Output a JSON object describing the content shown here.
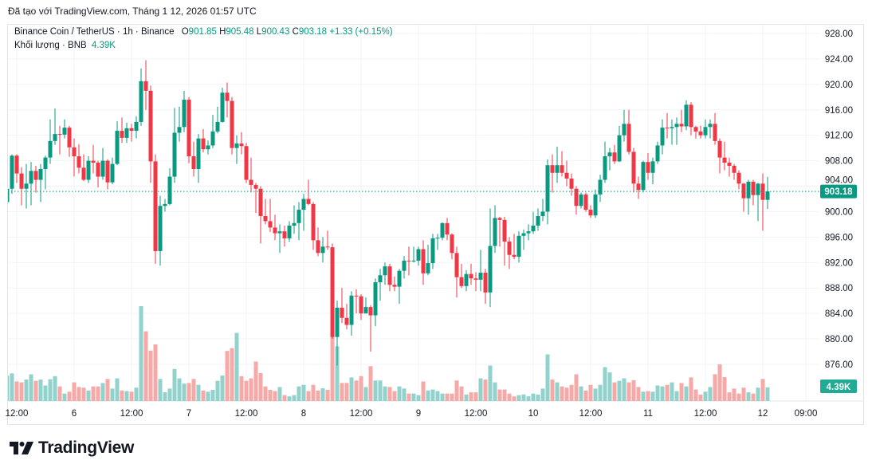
{
  "header": {
    "created_with": "Đã tạo với TradingView.com, Tháng 1 12, 2026 01:57 UTC"
  },
  "legend": {
    "symbol": "Binance Coin / TetherUS · 1h · Binance",
    "open_label": "O",
    "open": "901.85",
    "high_label": "H",
    "high": "905.48",
    "low_label": "L",
    "low": "900.43",
    "close_label": "C",
    "close": "903.18",
    "change": "+1.33 (+0.15%)",
    "volume_label": "Khối lượng · BNB",
    "volume": "4.39K"
  },
  "logo": {
    "text": "TradingView"
  },
  "colors": {
    "up": "#089981",
    "down": "#f23645",
    "up_volume": "#92d2cc",
    "down_volume": "#f7a9a7",
    "grid": "#f0f3fa",
    "last_price": "#089981"
  },
  "chart_data": {
    "type": "candlestick",
    "title": "Binance Coin / TetherUS · 1h · Binance",
    "interval": "1h",
    "ylim": [
      872,
      930
    ],
    "y_ticks": [
      "928.00",
      "924.00",
      "920.00",
      "916.00",
      "912.00",
      "908.00",
      "904.00",
      "900.00",
      "896.00",
      "892.00",
      "888.00",
      "884.00",
      "880.00",
      "876.00"
    ],
    "x_ticks": [
      "12:00",
      "6",
      "12:00",
      "7",
      "12:00",
      "8",
      "12:00",
      "9",
      "12:00",
      "10",
      "12:00",
      "11",
      "12:00",
      "12",
      "09:00"
    ],
    "grid": true,
    "last_price_label": "903.18",
    "last_volume_label": "4.39K",
    "volume_unit": "K BNB",
    "columns": [
      "open",
      "high",
      "low",
      "close",
      "volume"
    ],
    "candles": [
      [
        901.5,
        903.8,
        897.5,
        903.6,
        8.2
      ],
      [
        903.6,
        909.0,
        902.8,
        908.8,
        8.9
      ],
      [
        908.8,
        909.0,
        904.5,
        906.0,
        6.3
      ],
      [
        906.0,
        907.0,
        901.0,
        903.6,
        6.0
      ],
      [
        903.6,
        907.5,
        900.5,
        904.4,
        6.9
      ],
      [
        904.4,
        907.8,
        901.0,
        906.4,
        8.6
      ],
      [
        906.4,
        907.2,
        903.0,
        905.0,
        6.5
      ],
      [
        905.0,
        907.5,
        901.5,
        906.7,
        6.9
      ],
      [
        906.7,
        908.8,
        903.5,
        908.5,
        5.0
      ],
      [
        908.5,
        914.5,
        907.5,
        911.1,
        7.0
      ],
      [
        911.1,
        916.2,
        910.5,
        912.2,
        8.0
      ],
      [
        912.2,
        913.5,
        909.0,
        912.1,
        4.7
      ],
      [
        912.1,
        914.5,
        911.5,
        913.2,
        2.4
      ],
      [
        913.2,
        913.5,
        908.6,
        910.1,
        3.0
      ],
      [
        910.1,
        911.5,
        905.5,
        908.7,
        6.0
      ],
      [
        908.7,
        910.6,
        906.0,
        906.9,
        4.5
      ],
      [
        906.9,
        909.0,
        904.8,
        905.0,
        4.3
      ],
      [
        905.0,
        908.7,
        904.5,
        908.0,
        3.4
      ],
      [
        908.0,
        910.5,
        906.0,
        907.7,
        4.7
      ],
      [
        907.7,
        908.0,
        903.8,
        905.5,
        4.7
      ],
      [
        905.5,
        910.0,
        905.0,
        908.0,
        5.8
      ],
      [
        908.0,
        908.2,
        903.5,
        904.6,
        7.1
      ],
      [
        904.6,
        908.5,
        904.3,
        907.5,
        4.0
      ],
      [
        907.5,
        914.2,
        907.3,
        912.7,
        7.3
      ],
      [
        912.7,
        914.8,
        910.8,
        911.6,
        3.4
      ],
      [
        911.6,
        914.0,
        910.8,
        913.1,
        3.2
      ],
      [
        913.1,
        913.8,
        911.0,
        912.7,
        3.0
      ],
      [
        912.7,
        915.0,
        911.5,
        914.1,
        4.3
      ],
      [
        914.1,
        922.5,
        913.5,
        920.5,
        30.5
      ],
      [
        920.5,
        923.8,
        916.0,
        919.0,
        22.4
      ],
      [
        919.0,
        919.8,
        904.5,
        907.9,
        16.2
      ],
      [
        907.9,
        909.0,
        891.8,
        893.8,
        18.2
      ],
      [
        893.8,
        902.5,
        891.5,
        900.9,
        7.1
      ],
      [
        900.9,
        902.0,
        900.0,
        901.2,
        2.8
      ],
      [
        901.2,
        906.8,
        901.0,
        905.5,
        4.0
      ],
      [
        905.5,
        916.3,
        904.5,
        912.4,
        10.3
      ],
      [
        912.4,
        916.5,
        911.0,
        913.3,
        7.3
      ],
      [
        913.3,
        919.0,
        912.5,
        917.6,
        5.6
      ],
      [
        917.6,
        918.0,
        907.6,
        908.7,
        5.8
      ],
      [
        908.7,
        911.0,
        905.5,
        906.7,
        7.1
      ],
      [
        906.7,
        912.2,
        904.5,
        911.5,
        5.2
      ],
      [
        911.5,
        913.0,
        909.3,
        909.8,
        3.4
      ],
      [
        909.8,
        911.2,
        909.0,
        910.4,
        3.0
      ],
      [
        910.4,
        915.2,
        910.0,
        912.6,
        3.6
      ],
      [
        912.6,
        916.5,
        912.3,
        914.1,
        6.5
      ],
      [
        914.1,
        919.5,
        914.0,
        918.7,
        8.2
      ],
      [
        918.7,
        920.3,
        914.8,
        917.4,
        16.1
      ],
      [
        917.4,
        918.0,
        909.0,
        910.0,
        17.0
      ],
      [
        910.0,
        912.0,
        907.5,
        910.7,
        21.9
      ],
      [
        910.7,
        912.5,
        909.0,
        910.3,
        8.0
      ],
      [
        910.3,
        910.8,
        904.5,
        905.0,
        6.5
      ],
      [
        905.0,
        908.5,
        903.0,
        904.2,
        7.3
      ],
      [
        904.2,
        904.5,
        899.8,
        903.6,
        12.7
      ],
      [
        903.6,
        904.0,
        895.0,
        899.3,
        9.0
      ],
      [
        899.3,
        902.0,
        898.0,
        898.5,
        4.7
      ],
      [
        898.5,
        902.0,
        896.8,
        897.5,
        3.6
      ],
      [
        897.5,
        899.5,
        895.5,
        896.6,
        3.2
      ],
      [
        896.6,
        898.0,
        893.5,
        896.9,
        4.5
      ],
      [
        896.9,
        897.8,
        894.5,
        895.8,
        1.9
      ],
      [
        895.8,
        898.5,
        895.3,
        897.8,
        1.5
      ],
      [
        897.8,
        901.0,
        896.5,
        898.2,
        1.9
      ],
      [
        898.2,
        901.5,
        895.5,
        900.3,
        4.7
      ],
      [
        900.3,
        902.8,
        897.0,
        902.0,
        5.2
      ],
      [
        902.0,
        905.0,
        901.0,
        901.2,
        3.2
      ],
      [
        901.2,
        901.5,
        894.0,
        895.5,
        5.2
      ],
      [
        895.5,
        897.5,
        893.0,
        893.5,
        3.4
      ],
      [
        893.5,
        896.0,
        892.0,
        894.5,
        4.1
      ],
      [
        894.5,
        897.0,
        894.0,
        894.4,
        3.6
      ],
      [
        894.4,
        895.0,
        880.0,
        880.3,
        20.8
      ],
      [
        880.3,
        886.0,
        875.8,
        884.9,
        17.6
      ],
      [
        884.9,
        888.0,
        882.5,
        883.3,
        5.8
      ],
      [
        883.3,
        885.5,
        881.5,
        882.2,
        5.8
      ],
      [
        882.2,
        887.5,
        880.5,
        886.8,
        7.6
      ],
      [
        886.8,
        887.8,
        884.0,
        886.7,
        6.6
      ],
      [
        886.7,
        887.0,
        883.0,
        884.0,
        8.0
      ],
      [
        884.0,
        886.5,
        884.0,
        885.0,
        4.5
      ],
      [
        885.0,
        885.3,
        878.0,
        883.7,
        11.2
      ],
      [
        883.7,
        889.5,
        882.0,
        888.9,
        6.6
      ],
      [
        888.9,
        891.0,
        886.0,
        890.0,
        6.6
      ],
      [
        890.0,
        892.0,
        888.5,
        891.4,
        4.7
      ],
      [
        891.4,
        891.8,
        887.5,
        888.5,
        4.5
      ],
      [
        888.5,
        889.8,
        887.5,
        888.2,
        3.2
      ],
      [
        888.2,
        891.0,
        885.5,
        890.7,
        4.7
      ],
      [
        890.7,
        893.0,
        889.5,
        892.3,
        4.0
      ],
      [
        892.3,
        894.5,
        890.0,
        892.2,
        2.4
      ],
      [
        892.2,
        894.5,
        892.0,
        892.3,
        2.4
      ],
      [
        892.3,
        894.5,
        891.5,
        894.1,
        1.9
      ],
      [
        894.1,
        895.5,
        888.5,
        890.3,
        6.3
      ],
      [
        890.3,
        894.8,
        890.0,
        891.9,
        3.4
      ],
      [
        891.9,
        896.5,
        891.0,
        895.8,
        3.7
      ],
      [
        895.8,
        896.5,
        894.0,
        895.9,
        3.2
      ],
      [
        895.9,
        898.3,
        895.5,
        898.2,
        2.4
      ],
      [
        898.2,
        899.0,
        895.5,
        896.4,
        2.4
      ],
      [
        896.4,
        896.6,
        892.5,
        893.5,
        2.4
      ],
      [
        893.5,
        894.5,
        886.5,
        889.7,
        6.6
      ],
      [
        889.7,
        891.8,
        888.0,
        888.3,
        4.7
      ],
      [
        888.3,
        890.8,
        887.5,
        890.2,
        2.1
      ],
      [
        890.2,
        891.8,
        888.5,
        889.5,
        2.8
      ],
      [
        889.5,
        890.5,
        887.5,
        889.3,
        2.8
      ],
      [
        889.3,
        894.0,
        887.5,
        890.4,
        7.3
      ],
      [
        890.4,
        891.0,
        885.5,
        887.3,
        6.9
      ],
      [
        887.3,
        900.5,
        885.0,
        894.6,
        11.4
      ],
      [
        894.6,
        901.0,
        893.5,
        899.0,
        6.0
      ],
      [
        899.0,
        899.2,
        894.5,
        898.7,
        3.7
      ],
      [
        898.7,
        899.2,
        891.5,
        895.3,
        3.7
      ],
      [
        895.3,
        896.0,
        891.0,
        893.2,
        2.4
      ],
      [
        893.2,
        896.5,
        892.5,
        892.9,
        1.5
      ],
      [
        892.9,
        896.9,
        892.0,
        896.2,
        1.9
      ],
      [
        896.2,
        897.2,
        894.0,
        896.6,
        2.1
      ],
      [
        896.6,
        898.0,
        895.5,
        896.9,
        1.5
      ],
      [
        896.9,
        900.0,
        896.5,
        897.8,
        2.4
      ],
      [
        897.8,
        900.5,
        897.0,
        899.3,
        2.1
      ],
      [
        899.3,
        902.0,
        898.5,
        900.0,
        4.0
      ],
      [
        900.0,
        908.2,
        898.0,
        907.3,
        15.0
      ],
      [
        907.3,
        909.0,
        903.0,
        906.1,
        6.9
      ],
      [
        906.1,
        910.2,
        904.5,
        907.3,
        6.0
      ],
      [
        907.3,
        909.5,
        905.5,
        906.1,
        4.7
      ],
      [
        906.1,
        908.0,
        904.0,
        905.2,
        4.3
      ],
      [
        905.2,
        906.0,
        902.5,
        903.6,
        5.2
      ],
      [
        903.6,
        904.0,
        899.5,
        900.9,
        8.6
      ],
      [
        900.9,
        903.0,
        900.5,
        902.7,
        4.7
      ],
      [
        902.7,
        903.0,
        900.0,
        900.3,
        3.4
      ],
      [
        900.3,
        901.0,
        899.0,
        899.4,
        5.2
      ],
      [
        899.4,
        903.5,
        899.0,
        902.7,
        4.0
      ],
      [
        902.7,
        905.8,
        901.5,
        905.0,
        5.2
      ],
      [
        905.0,
        911.0,
        904.5,
        908.7,
        10.9
      ],
      [
        908.7,
        910.0,
        906.5,
        909.3,
        9.2
      ],
      [
        909.3,
        910.5,
        907.5,
        907.9,
        6.0
      ],
      [
        907.9,
        913.5,
        907.8,
        912.0,
        6.5
      ],
      [
        912.0,
        916.0,
        911.0,
        913.8,
        7.3
      ],
      [
        913.8,
        916.0,
        909.0,
        909.4,
        6.0
      ],
      [
        909.4,
        910.0,
        903.0,
        904.4,
        6.7
      ],
      [
        904.4,
        905.5,
        902.0,
        903.4,
        4.5
      ],
      [
        903.4,
        908.0,
        903.0,
        907.8,
        3.0
      ],
      [
        907.8,
        909.2,
        905.0,
        906.1,
        3.2
      ],
      [
        906.1,
        908.5,
        904.3,
        907.9,
        3.0
      ],
      [
        907.9,
        911.0,
        907.5,
        910.4,
        5.0
      ],
      [
        910.4,
        914.5,
        909.0,
        913.2,
        4.7
      ],
      [
        913.2,
        915.5,
        911.5,
        913.1,
        5.2
      ],
      [
        913.1,
        914.5,
        910.5,
        913.3,
        6.0
      ],
      [
        913.3,
        914.8,
        910.5,
        913.8,
        3.2
      ],
      [
        913.8,
        916.0,
        912.5,
        913.4,
        5.8
      ],
      [
        913.4,
        917.5,
        912.8,
        916.8,
        4.7
      ],
      [
        916.8,
        917.2,
        912.0,
        913.3,
        7.6
      ],
      [
        913.3,
        913.5,
        911.5,
        912.6,
        3.7
      ],
      [
        912.6,
        913.5,
        911.5,
        912.0,
        2.1
      ],
      [
        912.0,
        914.5,
        911.5,
        913.3,
        3.0
      ],
      [
        913.3,
        914.5,
        911.5,
        913.8,
        4.5
      ],
      [
        913.8,
        915.5,
        910.5,
        911.1,
        8.6
      ],
      [
        911.1,
        911.5,
        906.0,
        908.5,
        11.8
      ],
      [
        908.5,
        911.0,
        906.5,
        907.7,
        7.7
      ],
      [
        907.7,
        908.5,
        905.5,
        907.2,
        2.8
      ],
      [
        907.2,
        907.5,
        905.0,
        906.1,
        4.0
      ],
      [
        906.1,
        906.5,
        903.5,
        904.4,
        2.4
      ],
      [
        904.4,
        904.5,
        900.0,
        902.1,
        4.3
      ],
      [
        902.1,
        905.0,
        899.5,
        904.7,
        2.8
      ],
      [
        904.7,
        905.0,
        901.0,
        902.6,
        2.4
      ],
      [
        902.6,
        904.5,
        898.5,
        904.4,
        4.3
      ],
      [
        904.4,
        906.0,
        897.0,
        901.85,
        7.1
      ],
      [
        901.85,
        905.48,
        900.43,
        903.18,
        4.39
      ]
    ]
  }
}
